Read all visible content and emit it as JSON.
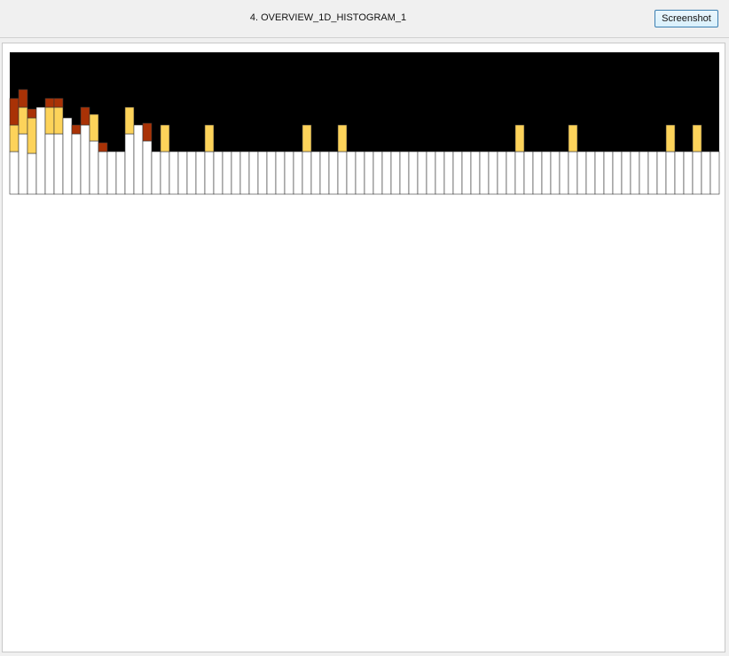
{
  "window": {
    "title": "4. OVERVIEW_1D_HISTOGRAM_1",
    "screenshot_label": "Screenshot"
  },
  "colors": {
    "background": "#000000",
    "dark_red": "#a93206",
    "yellow": "#fdd35a",
    "white": "#ffffff",
    "orange": "#d88a36",
    "light_peach": "#f2c497",
    "tan": "#e2a97c",
    "pale_yellow": "#ffe8a0",
    "dusty_rose": "#c98e77"
  },
  "chart_data": [
    {
      "type": "bar",
      "stacked": true,
      "series": [
        {
          "color": "white",
          "values": [
            48,
            68,
            46,
            98,
            68,
            68,
            86,
            68,
            78,
            60,
            48,
            48,
            48,
            68,
            78,
            60,
            48,
            48,
            48,
            48,
            48,
            48,
            48,
            48,
            48,
            48,
            48,
            48,
            48,
            48,
            48,
            48,
            48,
            48,
            48,
            48,
            48,
            48,
            48,
            48,
            48,
            48,
            48,
            48,
            48,
            48,
            48,
            48,
            48,
            48,
            48,
            48,
            48,
            48,
            48,
            48,
            48,
            48,
            48,
            48,
            48,
            48,
            48,
            48,
            48,
            48,
            48,
            48,
            48,
            48,
            48,
            48,
            48,
            48,
            48,
            48,
            48,
            48,
            48,
            48
          ]
        },
        {
          "color": "yellow",
          "values": [
            30,
            30,
            40,
            0,
            30,
            30,
            0,
            0,
            0,
            30,
            0,
            0,
            0,
            30,
            0,
            0,
            0,
            30,
            0,
            0,
            0,
            0,
            30,
            0,
            0,
            0,
            0,
            0,
            0,
            0,
            0,
            0,
            0,
            30,
            0,
            0,
            0,
            30,
            0,
            0,
            0,
            0,
            0,
            0,
            0,
            0,
            0,
            0,
            0,
            0,
            0,
            0,
            0,
            0,
            0,
            0,
            0,
            30,
            0,
            0,
            0,
            0,
            0,
            30,
            0,
            0,
            0,
            0,
            0,
            0,
            0,
            0,
            0,
            0,
            30,
            0,
            0,
            30,
            0,
            0
          ]
        },
        {
          "color": "dark_red",
          "values": [
            30,
            20,
            10,
            0,
            10,
            10,
            0,
            10,
            20,
            0,
            10,
            0,
            0,
            0,
            0,
            20,
            0,
            0,
            0,
            0,
            0,
            0,
            0,
            0,
            0,
            0,
            0,
            0,
            0,
            0,
            0,
            0,
            0,
            0,
            0,
            0,
            0,
            0,
            0,
            0,
            0,
            0,
            0,
            0,
            0,
            0,
            0,
            0,
            0,
            0,
            0,
            0,
            0,
            0,
            0,
            0,
            0,
            0,
            0,
            0,
            0,
            0,
            0,
            0,
            0,
            0,
            0,
            0,
            0,
            0,
            0,
            0,
            0,
            0,
            0,
            0,
            0,
            0,
            0,
            0
          ]
        }
      ]
    }
  ]
}
